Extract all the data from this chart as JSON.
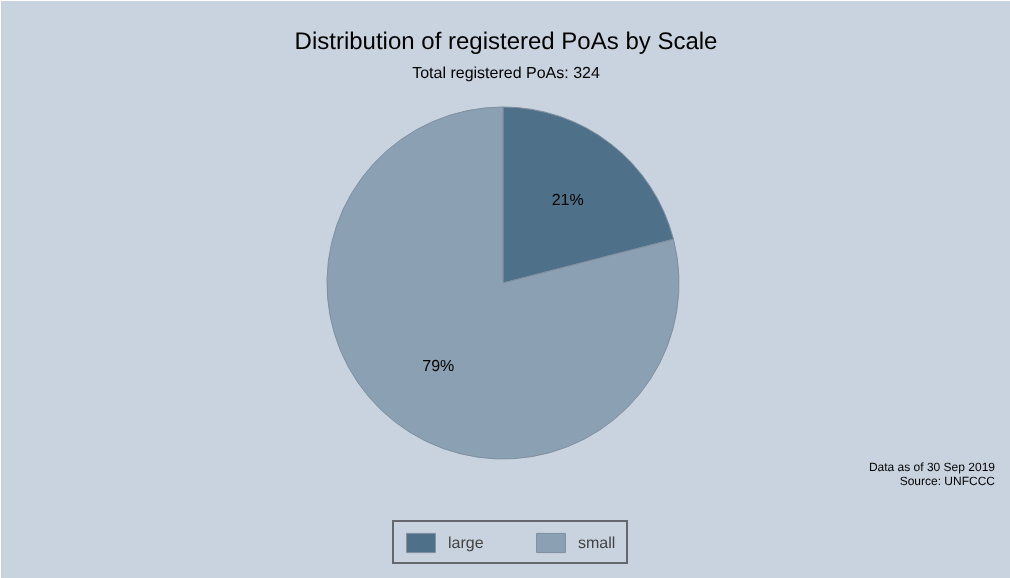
{
  "chart_data": {
    "type": "pie",
    "title": "Distribution of registered PoAs by Scale",
    "subtitle": "Total registered PoAs: 324",
    "categories": [
      "large",
      "small"
    ],
    "values": [
      21,
      79
    ],
    "colors": [
      "#4e7189",
      "#8ba0b3"
    ],
    "value_labels": [
      "21%",
      "79%"
    ],
    "annotations": [
      "Data as of 30 Sep 2019",
      "Source: UNFCCC"
    ],
    "legend": "bottom"
  }
}
